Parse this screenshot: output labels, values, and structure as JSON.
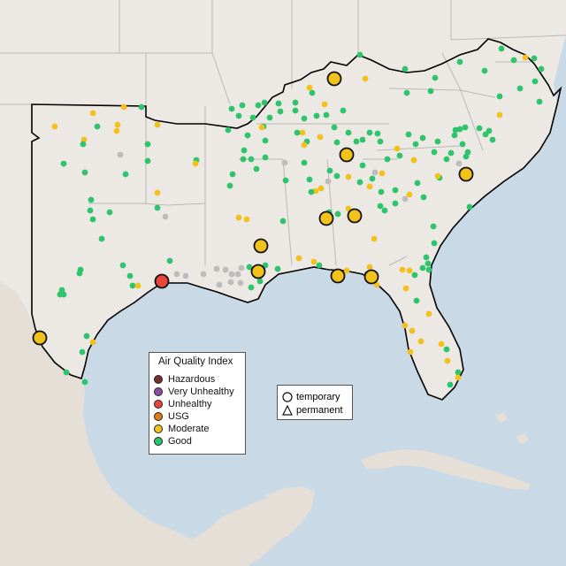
{
  "legend": {
    "title": "Air Quality Index",
    "items": [
      {
        "label": "Hazardous",
        "color": "#7b2f2a"
      },
      {
        "label": "Very Unhealthy",
        "color": "#8d4fa6"
      },
      {
        "label": "Unhealthy",
        "color": "#e8453c"
      },
      {
        "label": "USG",
        "color": "#e07b1a"
      },
      {
        "label": "Moderate",
        "color": "#f2c21b"
      },
      {
        "label": "Good",
        "color": "#2ec46b"
      }
    ]
  },
  "shape_legend": {
    "items": [
      {
        "label": "temporary",
        "icon": "circle-icon"
      },
      {
        "label": "permanent",
        "icon": "triangle-icon"
      }
    ]
  },
  "colors": {
    "water": "#c9d9e6",
    "land": "#ece8e4",
    "mexico_land": "#e9e3dd",
    "borders": "#b9b5b1",
    "region_outline": "#000000",
    "offline_station": "#bcbcbc"
  }
}
